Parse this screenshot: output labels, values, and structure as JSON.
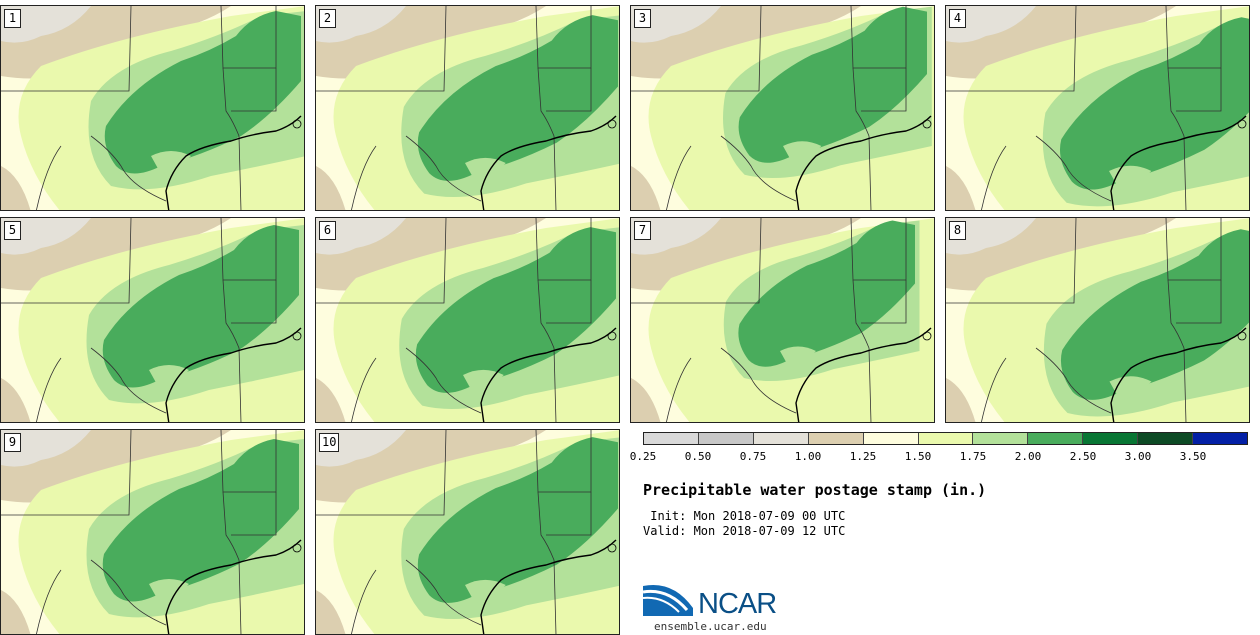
{
  "map": {
    "panels": [
      {
        "label": "1"
      },
      {
        "label": "2"
      },
      {
        "label": "3"
      },
      {
        "label": "4"
      },
      {
        "label": "5"
      },
      {
        "label": "6"
      },
      {
        "label": "7"
      },
      {
        "label": "8"
      },
      {
        "label": "9"
      },
      {
        "label": "10"
      }
    ]
  },
  "legend": {
    "colors": [
      "#d9d9d9",
      "#c7c7c7",
      "#e4e1d9",
      "#dccfb0",
      "#fefdde",
      "#eaf9ad",
      "#b3e19a",
      "#49ac5c",
      "#087634",
      "#0d4a25",
      "#0320a6"
    ],
    "ticks": [
      "0.25",
      "0.50",
      "0.75",
      "1.00",
      "1.25",
      "1.50",
      "1.75",
      "2.00",
      "2.50",
      "3.00",
      "3.50"
    ]
  },
  "title": "Precipitable water postage stamp (in.)",
  "init": " Init: Mon 2018-07-09 00 UTC",
  "valid": "Valid: Mon 2018-07-09 12 UTC",
  "logo": {
    "text": "NCAR",
    "url": "ensemble.ucar.edu"
  }
}
